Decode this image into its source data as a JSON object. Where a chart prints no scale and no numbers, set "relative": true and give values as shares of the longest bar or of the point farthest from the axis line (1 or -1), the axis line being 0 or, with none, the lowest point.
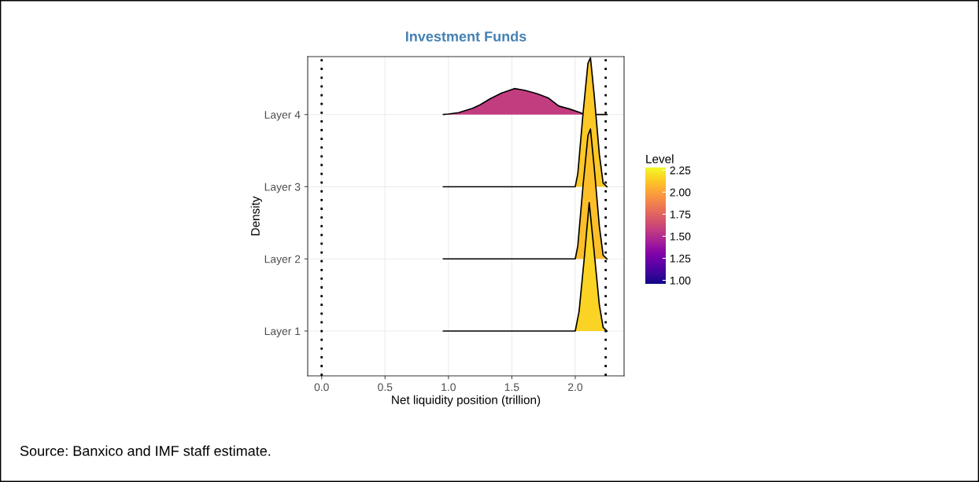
{
  "chart_data": {
    "type": "area",
    "title": "Investment Funds",
    "xlabel": "Net liquidity position (trillion)",
    "ylabel": "Density",
    "clabel": "Level",
    "xlim": [
      -0.11,
      2.385
    ],
    "xticks": [
      {
        "value": 0,
        "label": "0.0"
      },
      0.5,
      {
        "value": 1,
        "label": "1.0"
      },
      1.5,
      {
        "value": 2,
        "label": "2.0"
      }
    ],
    "relative": true,
    "y_categories": [
      "Layer 4",
      "Layer 3",
      "Layer 2",
      "Layer 1"
    ],
    "clim": [
      0.96,
      2.28
    ],
    "cticks": [
      {
        "value": 1,
        "label": "1.00"
      },
      1.25,
      {
        "value": 1.5,
        "label": "1.50"
      },
      1.75,
      {
        "value": 2,
        "label": "2.00"
      },
      2.25
    ],
    "grid": true,
    "legend": false,
    "ref_lines": [
      {
        "axis": "x",
        "value": 0,
        "color": "#000000",
        "line_style": "dotted"
      },
      {
        "axis": "x",
        "value": 2.24,
        "color": "#000000",
        "line_style": "dotted"
      }
    ],
    "series": [
      {
        "color": "#c23d80",
        "x": [
          0.96,
          1.0,
          1.08,
          1.19,
          1.25,
          1.33,
          1.42,
          1.52,
          1.6,
          1.7,
          1.79,
          1.87,
          1.95,
          2.04,
          2.07,
          2.25
        ],
        "values": [
          0.792,
          0.794,
          0.799,
          0.815,
          0.828,
          0.85,
          0.871,
          0.887,
          0.881,
          0.868,
          0.852,
          0.823,
          0.813,
          0.799,
          0.792,
          0.792
        ]
      },
      {
        "color": "#fdc926",
        "x": [
          0.96,
          2.0,
          2.02,
          2.06,
          2.1,
          2.12,
          2.15,
          2.19,
          2.22,
          2.25
        ],
        "values": [
          0.528,
          0.528,
          0.575,
          0.789,
          0.979,
          1,
          0.86,
          0.646,
          0.541,
          0.528
        ]
      },
      {
        "color": "#fcbf2a",
        "x": [
          0.96,
          2.0,
          2.02,
          2.06,
          2.1,
          2.12,
          2.15,
          2.19,
          2.22,
          2.25
        ],
        "values": [
          0.264,
          0.264,
          0.311,
          0.525,
          0.715,
          0.739,
          0.596,
          0.383,
          0.277,
          0.264
        ]
      },
      {
        "color": "#fbd324",
        "x": [
          0.96,
          2.0,
          2.03,
          2.07,
          2.11,
          2.15,
          2.19,
          2.22,
          2.25
        ],
        "values": [
          0,
          0,
          0.071,
          0.261,
          0.47,
          0.285,
          0.095,
          0.013,
          0
        ]
      }
    ],
    "annotations": [
      "Source: Banxico and IMF staff estimate."
    ]
  }
}
